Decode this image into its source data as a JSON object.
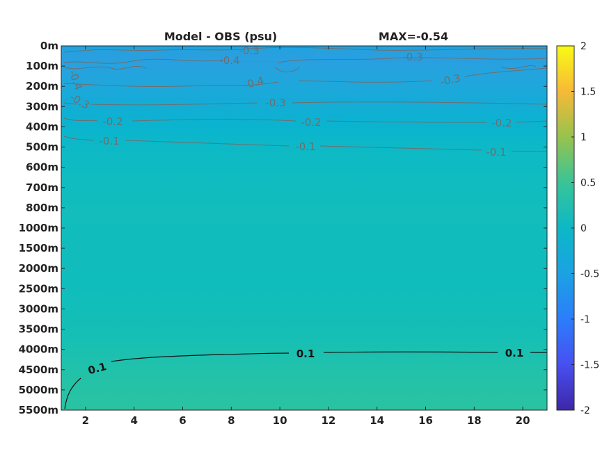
{
  "chart_data": {
    "type": "heatmap",
    "title_left": "Model - OBS (psu)",
    "title_right": "MAX=-0.54",
    "x_ticks": [
      "2",
      "4",
      "6",
      "8",
      "10",
      "12",
      "14",
      "16",
      "18",
      "20"
    ],
    "x_tick_values": [
      2,
      4,
      6,
      8,
      10,
      12,
      14,
      16,
      18,
      20
    ],
    "xlim": [
      1,
      21
    ],
    "y_ticks": [
      "0m",
      "100m",
      "200m",
      "300m",
      "400m",
      "500m",
      "600m",
      "700m",
      "800m",
      "1000m",
      "1500m",
      "2000m",
      "2500m",
      "3000m",
      "3500m",
      "4000m",
      "4500m",
      "5000m",
      "5500m"
    ],
    "colorbar": {
      "min": -2,
      "max": 2,
      "ticks": [
        "2",
        "1.5",
        "1",
        "0.5",
        "0",
        "-0.5",
        "-1",
        "-1.5",
        "-2"
      ],
      "tick_values": [
        2,
        1.5,
        1,
        0.5,
        0,
        -0.5,
        -1,
        -1.5,
        -2
      ],
      "colormap": "parula"
    },
    "field_estimate": {
      "depth_levels": [
        "0m",
        "100m",
        "200m",
        "300m",
        "400m",
        "500m",
        "600m",
        "700m",
        "800m",
        "1000m",
        "1500m",
        "2000m",
        "2500m",
        "3000m",
        "3500m",
        "4000m",
        "4500m",
        "5000m",
        "5500m"
      ],
      "values": [
        -0.45,
        -0.5,
        -0.42,
        -0.3,
        -0.2,
        -0.1,
        -0.05,
        0,
        0.02,
        0.03,
        0.02,
        0.0,
        0.0,
        0.02,
        0.04,
        0.08,
        0.11,
        0.12,
        0.13
      ]
    },
    "contour_labels": [
      {
        "text": "-0.3",
        "depth": "0m",
        "x": 8.3
      },
      {
        "text": "-0.4",
        "depth": "100m",
        "x": 7.9
      },
      {
        "text": "-0.3",
        "depth": "100m",
        "x": 15.5
      },
      {
        "text": "-0.4",
        "depth": "200m",
        "x": 1.5
      },
      {
        "text": "-0.4",
        "depth": "200m",
        "x": 9.0
      },
      {
        "text": "-0.3",
        "depth": "200m",
        "x": 17.1
      },
      {
        "text": "-0.3",
        "depth": "300m",
        "x": 1.6
      },
      {
        "text": "-0.3",
        "depth": "300m",
        "x": 10.8
      },
      {
        "text": "-0.2",
        "depth": "400m",
        "x": 3.1
      },
      {
        "text": "-0.2",
        "depth": "400m",
        "x": 11.3
      },
      {
        "text": "-0.2",
        "depth": "400m",
        "x": 19.1
      },
      {
        "text": "-0.1",
        "depth": "500m",
        "x": 3.0
      },
      {
        "text": "-0.1",
        "depth": "500m",
        "x": 11.0
      },
      {
        "text": "-0.1",
        "depth": "500m",
        "x": 18.8
      },
      {
        "text": "0.1",
        "depth": "4500m",
        "x": 2.5
      },
      {
        "text": "0.1",
        "depth": "4000m",
        "x": 11.0
      },
      {
        "text": "0.1",
        "depth": "4000m",
        "x": 19.5
      }
    ]
  }
}
